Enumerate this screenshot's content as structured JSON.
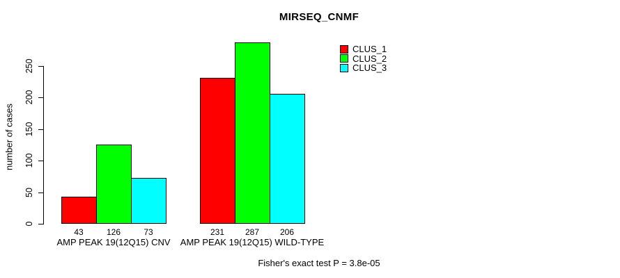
{
  "chart_data": {
    "type": "bar",
    "title": "MIRSEQ_CNMF",
    "xlabel": "",
    "ylabel": "number of cases",
    "categories": [
      "AMP PEAK 19(12Q15) CNV",
      "AMP PEAK 19(12Q15) WILD-TYPE"
    ],
    "series": [
      {
        "name": "CLUS_1",
        "color": "#ff0000",
        "values": [
          43,
          231
        ]
      },
      {
        "name": "CLUS_2",
        "color": "#00ff00",
        "values": [
          126,
          287
        ]
      },
      {
        "name": "CLUS_3",
        "color": "#00ffff",
        "values": [
          73,
          206
        ]
      }
    ],
    "yticks": [
      0,
      50,
      100,
      150,
      200,
      250
    ],
    "ylim": [
      0,
      290
    ],
    "grid": false,
    "bar_value_labels_shown": true,
    "legend_position": "top-right-of-center",
    "annotation": "Fisher's exact test P = 3.8e-05",
    "axis_color": "#000000",
    "text_color": "#000000",
    "background_color": "#ffffff"
  }
}
